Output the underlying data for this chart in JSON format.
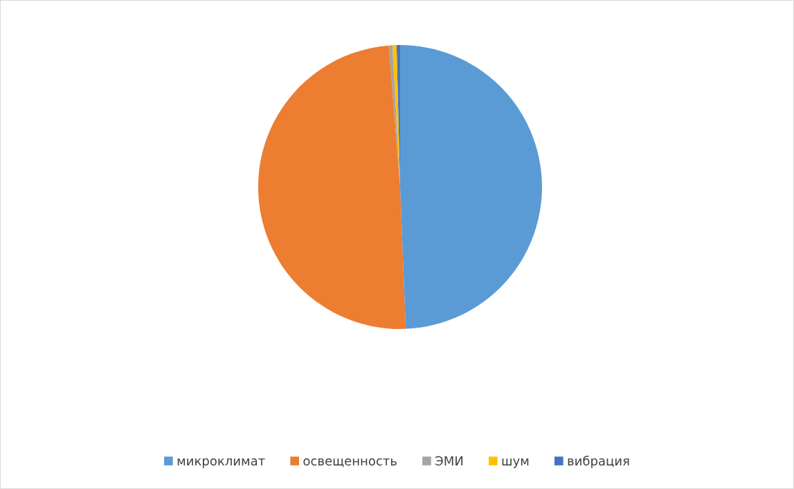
{
  "chart_data": {
    "type": "pie",
    "categories": [
      "микроклимат",
      "освещенность",
      "ЭМИ",
      "шум",
      "вибрация"
    ],
    "values": [
      49.37,
      49.36,
      0.4,
      0.47,
      0.4
    ],
    "colors": [
      "#5b9bd5",
      "#ed7d31",
      "#a5a5a5",
      "#ffc000",
      "#4472c4"
    ],
    "legend": "bottom"
  }
}
